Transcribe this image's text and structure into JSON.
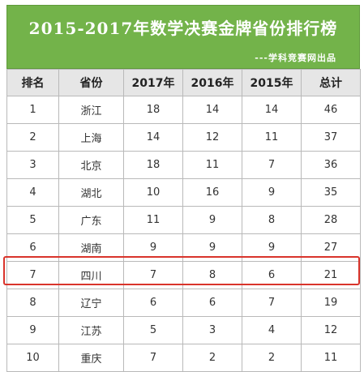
{
  "banner": {
    "title": "2015-2017年数学决赛金牌省份排行榜",
    "subtitle": "---学科竞赛网出品"
  },
  "table": {
    "headers": [
      "排名",
      "省份",
      "2017年",
      "2016年",
      "2015年",
      "总计"
    ],
    "rows": [
      {
        "rank": "1",
        "province": "浙江",
        "y2017": "18",
        "y2016": "14",
        "y2015": "14",
        "total": "46"
      },
      {
        "rank": "2",
        "province": "上海",
        "y2017": "14",
        "y2016": "12",
        "y2015": "11",
        "total": "37"
      },
      {
        "rank": "3",
        "province": "北京",
        "y2017": "18",
        "y2016": "11",
        "y2015": "7",
        "total": "36"
      },
      {
        "rank": "4",
        "province": "湖北",
        "y2017": "10",
        "y2016": "16",
        "y2015": "9",
        "total": "35"
      },
      {
        "rank": "5",
        "province": "广东",
        "y2017": "11",
        "y2016": "9",
        "y2015": "8",
        "total": "28"
      },
      {
        "rank": "6",
        "province": "湖南",
        "y2017": "9",
        "y2016": "9",
        "y2015": "9",
        "total": "27"
      },
      {
        "rank": "7",
        "province": "四川",
        "y2017": "7",
        "y2016": "8",
        "y2015": "6",
        "total": "21"
      },
      {
        "rank": "8",
        "province": "辽宁",
        "y2017": "6",
        "y2016": "6",
        "y2015": "7",
        "total": "19"
      },
      {
        "rank": "9",
        "province": "江苏",
        "y2017": "5",
        "y2016": "3",
        "y2015": "4",
        "total": "12"
      },
      {
        "rank": "10",
        "province": "重庆",
        "y2017": "7",
        "y2016": "2",
        "y2015": "2",
        "total": "11"
      }
    ],
    "highlighted_rank": "7"
  },
  "colors": {
    "banner_green": "#73b34a",
    "header_gray": "#e6e6e6",
    "highlight_red": "#d9342b"
  }
}
